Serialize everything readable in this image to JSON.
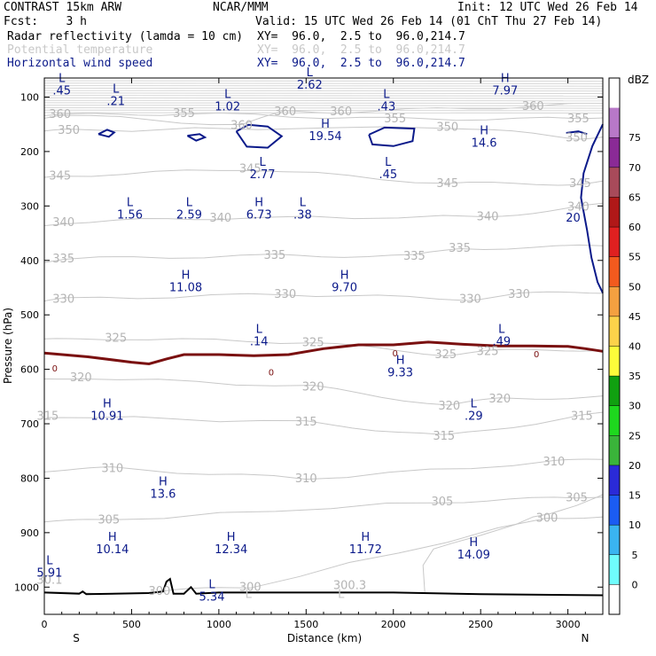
{
  "header": {
    "model": "CONTRAST 15km ARW",
    "org": "NCAR/MMM",
    "init": "Init: 12 UTC Wed 26 Feb 14",
    "fcst": "Fcst:    3 h",
    "valid": "Valid: 15 UTC Wed 26 Feb 14 (01 ChT Thu 27 Feb 14)"
  },
  "fields": [
    {
      "name": "Radar reflectivity (lamda = 10 cm)",
      "xy": "XY=  96.0,  2.5 to  96.0,214.7",
      "color": "#000000"
    },
    {
      "name": "Potential temperature",
      "xy": "XY=  96.0,  2.5 to  96.0,214.7",
      "color": "#c8c8c8"
    },
    {
      "name": "Horizontal wind speed",
      "xy": "XY=  96.0,  2.5 to  96.0,214.7",
      "color": "#0b1a8a"
    }
  ],
  "chart_data": {
    "type": "contour",
    "xlabel": "Distance (km)",
    "ylabel": "Pressure (hPa)",
    "xlim": [
      0,
      3200
    ],
    "ylim": [
      1050,
      65
    ],
    "xticks": [
      0,
      500,
      1000,
      1500,
      2000,
      2500,
      3000
    ],
    "yticks": [
      100,
      200,
      300,
      400,
      500,
      600,
      700,
      800,
      900,
      1000
    ],
    "x_end_labels": {
      "left": "S",
      "right": "N"
    },
    "colorbar": {
      "label": "dBZ",
      "levels": [
        0,
        5,
        10,
        15,
        20,
        25,
        30,
        35,
        40,
        45,
        50,
        55,
        60,
        65,
        70,
        75
      ],
      "colors": [
        "#ffffff",
        "#6ffcfc",
        "#3ab4f0",
        "#1b5cf2",
        "#2a2ad8",
        "#3ab43a",
        "#1ed81e",
        "#10a010",
        "#fcfc3a",
        "#fcd24a",
        "#f4a040",
        "#f25a1e",
        "#e02020",
        "#b01818",
        "#a84a5a",
        "#8a2a96",
        "#b878c8",
        "#ffffff"
      ]
    },
    "theta_contour_labels": [
      {
        "x": 90,
        "p": 132,
        "text": "360"
      },
      {
        "x": 800,
        "p": 130,
        "text": "355"
      },
      {
        "x": 1130,
        "p": 152,
        "text": "360"
      },
      {
        "x": 1380,
        "p": 127,
        "text": "360"
      },
      {
        "x": 1700,
        "p": 127,
        "text": "360"
      },
      {
        "x": 2010,
        "p": 140,
        "text": "355"
      },
      {
        "x": 2800,
        "p": 117,
        "text": "360"
      },
      {
        "x": 3060,
        "p": 140,
        "text": "355"
      },
      {
        "x": 140,
        "p": 161,
        "text": "350"
      },
      {
        "x": 2310,
        "p": 155,
        "text": "350"
      },
      {
        "x": 3050,
        "p": 175,
        "text": "350"
      },
      {
        "x": 1180,
        "p": 232,
        "text": "345"
      },
      {
        "x": 90,
        "p": 245,
        "text": "345"
      },
      {
        "x": 2310,
        "p": 259,
        "text": "345"
      },
      {
        "x": 3070,
        "p": 259,
        "text": "345"
      },
      {
        "x": 1010,
        "p": 322,
        "text": "340"
      },
      {
        "x": 110,
        "p": 330,
        "text": "340"
      },
      {
        "x": 2540,
        "p": 320,
        "text": "340"
      },
      {
        "x": 3060,
        "p": 302,
        "text": "340"
      },
      {
        "x": 110,
        "p": 397,
        "text": "335"
      },
      {
        "x": 1320,
        "p": 391,
        "text": "335"
      },
      {
        "x": 2120,
        "p": 392,
        "text": "335"
      },
      {
        "x": 2380,
        "p": 378,
        "text": "335"
      },
      {
        "x": 110,
        "p": 471,
        "text": "330"
      },
      {
        "x": 1380,
        "p": 462,
        "text": "330"
      },
      {
        "x": 2440,
        "p": 471,
        "text": "330"
      },
      {
        "x": 2720,
        "p": 462,
        "text": "330"
      },
      {
        "x": 410,
        "p": 543,
        "text": "325"
      },
      {
        "x": 1540,
        "p": 551,
        "text": "325"
      },
      {
        "x": 2300,
        "p": 573,
        "text": "325"
      },
      {
        "x": 2540,
        "p": 567,
        "text": "325"
      },
      {
        "x": 210,
        "p": 615,
        "text": "320"
      },
      {
        "x": 1540,
        "p": 632,
        "text": "320"
      },
      {
        "x": 2320,
        "p": 667,
        "text": "320"
      },
      {
        "x": 2610,
        "p": 654,
        "text": "320"
      },
      {
        "x": 20,
        "p": 686,
        "text": "315"
      },
      {
        "x": 1500,
        "p": 697,
        "text": "315"
      },
      {
        "x": 2290,
        "p": 723,
        "text": "315"
      },
      {
        "x": 3080,
        "p": 686,
        "text": "315"
      },
      {
        "x": 390,
        "p": 782,
        "text": "310"
      },
      {
        "x": 1500,
        "p": 801,
        "text": "310"
      },
      {
        "x": 2920,
        "p": 770,
        "text": "310"
      },
      {
        "x": 370,
        "p": 877,
        "text": "305"
      },
      {
        "x": 2280,
        "p": 843,
        "text": "305"
      },
      {
        "x": 3050,
        "p": 836,
        "text": "305"
      },
      {
        "x": 2880,
        "p": 873,
        "text": "300"
      },
      {
        "x": 1180,
        "p": 1000,
        "text": "300"
      },
      {
        "x": 1750,
        "p": 997,
        "text": "300.3"
      },
      {
        "x": 30,
        "p": 987,
        "text": "30.1"
      },
      {
        "x": 660,
        "p": 1008,
        "text": "300"
      }
    ],
    "wind_contour_labels": [
      {
        "x": 3030,
        "p": 322,
        "text": "20"
      }
    ],
    "dbz_contour_labels": [
      {
        "x": 60,
        "p": 597,
        "text": "0"
      },
      {
        "x": 1300,
        "p": 605,
        "text": "0"
      },
      {
        "x": 2010,
        "p": 570,
        "text": "0"
      },
      {
        "x": 2820,
        "p": 571,
        "text": "0"
      }
    ],
    "extrema": [
      {
        "x": 100,
        "p": 72,
        "kind": "L",
        "value": ".45"
      },
      {
        "x": 410,
        "p": 92,
        "kind": "L",
        "value": ".21"
      },
      {
        "x": 1050,
        "p": 102,
        "kind": "L",
        "value": "1.02"
      },
      {
        "x": 1520,
        "p": 62,
        "kind": "L",
        "value": "2.62"
      },
      {
        "x": 1960,
        "p": 102,
        "kind": "L",
        "value": ".43"
      },
      {
        "x": 2640,
        "p": 72,
        "kind": "H",
        "value": "7.97"
      },
      {
        "x": 1610,
        "p": 156,
        "kind": "H",
        "value": "19.54"
      },
      {
        "x": 2520,
        "p": 168,
        "kind": "H",
        "value": "14.6"
      },
      {
        "x": 1250,
        "p": 226,
        "kind": "L",
        "value": "2.77"
      },
      {
        "x": 1970,
        "p": 226,
        "kind": "L",
        "value": ".45"
      },
      {
        "x": 490,
        "p": 300,
        "kind": "L",
        "value": "1.56"
      },
      {
        "x": 830,
        "p": 300,
        "kind": "L",
        "value": "2.59"
      },
      {
        "x": 1230,
        "p": 300,
        "kind": "H",
        "value": "6.73"
      },
      {
        "x": 1480,
        "p": 300,
        "kind": "L",
        "value": ".38"
      },
      {
        "x": 810,
        "p": 434,
        "kind": "H",
        "value": "11.08"
      },
      {
        "x": 1720,
        "p": 434,
        "kind": "H",
        "value": "9.70"
      },
      {
        "x": 1230,
        "p": 533,
        "kind": "L",
        "value": ".14"
      },
      {
        "x": 2620,
        "p": 533,
        "kind": "L",
        "value": ".49"
      },
      {
        "x": 2040,
        "p": 590,
        "kind": "H",
        "value": "9.33"
      },
      {
        "x": 360,
        "p": 670,
        "kind": "H",
        "value": "10.91"
      },
      {
        "x": 2460,
        "p": 670,
        "kind": "L",
        "value": ".29"
      },
      {
        "x": 680,
        "p": 813,
        "kind": "H",
        "value": "13.6"
      },
      {
        "x": 390,
        "p": 915,
        "kind": "H",
        "value": "10.14"
      },
      {
        "x": 1070,
        "p": 915,
        "kind": "H",
        "value": "12.34"
      },
      {
        "x": 1840,
        "p": 915,
        "kind": "H",
        "value": "11.72"
      },
      {
        "x": 2460,
        "p": 925,
        "kind": "H",
        "value": "14.09"
      },
      {
        "x": 30,
        "p": 958,
        "kind": "L",
        "value": "5.91"
      },
      {
        "x": 960,
        "p": 1002,
        "kind": "L",
        "value": "5.34"
      },
      {
        "x": 1170,
        "p": 1020,
        "kind": "L",
        "value": ""
      },
      {
        "x": 1700,
        "p": 1020,
        "kind": "L",
        "value": ""
      }
    ],
    "zero_dbz_line": [
      [
        0,
        570
      ],
      [
        250,
        577
      ],
      [
        500,
        587
      ],
      [
        600,
        590
      ],
      [
        700,
        581
      ],
      [
        800,
        573
      ],
      [
        1000,
        573
      ],
      [
        1200,
        575
      ],
      [
        1400,
        573
      ],
      [
        1600,
        562
      ],
      [
        1800,
        555
      ],
      [
        2000,
        555
      ],
      [
        2200,
        550
      ],
      [
        2400,
        554
      ],
      [
        2600,
        557
      ],
      [
        2800,
        557
      ],
      [
        3000,
        558
      ],
      [
        3100,
        562
      ],
      [
        3200,
        567
      ]
    ],
    "wind_20_contours": [
      [
        [
          310,
          168
        ],
        [
          360,
          160
        ],
        [
          400,
          165
        ],
        [
          370,
          173
        ],
        [
          310,
          168
        ]
      ],
      [
        [
          820,
          171
        ],
        [
          890,
          168
        ],
        [
          920,
          174
        ],
        [
          870,
          180
        ],
        [
          820,
          171
        ]
      ],
      [
        [
          1100,
          163
        ],
        [
          1170,
          151
        ],
        [
          1280,
          154
        ],
        [
          1360,
          172
        ],
        [
          1280,
          193
        ],
        [
          1160,
          191
        ],
        [
          1100,
          163
        ]
      ],
      [
        [
          1860,
          169
        ],
        [
          1950,
          156
        ],
        [
          2120,
          158
        ],
        [
          2110,
          181
        ],
        [
          2000,
          190
        ],
        [
          1880,
          187
        ],
        [
          1860,
          169
        ]
      ],
      [
        [
          2990,
          166
        ],
        [
          3060,
          163
        ],
        [
          3110,
          168
        ]
      ],
      [
        [
          3200,
          150
        ],
        [
          3140,
          190
        ],
        [
          3090,
          240
        ],
        [
          3075,
          285
        ],
        [
          3110,
          345
        ],
        [
          3135,
          395
        ],
        [
          3170,
          440
        ],
        [
          3200,
          460
        ]
      ]
    ],
    "terrain": [
      [
        0,
        1010
      ],
      [
        200,
        1012
      ],
      [
        220,
        1008
      ],
      [
        240,
        1013
      ],
      [
        600,
        1011
      ],
      [
        680,
        1008
      ],
      [
        700,
        990
      ],
      [
        720,
        985
      ],
      [
        740,
        1012
      ],
      [
        800,
        1012
      ],
      [
        840,
        1000
      ],
      [
        870,
        1012
      ],
      [
        1000,
        1010
      ],
      [
        2000,
        1010
      ],
      [
        2500,
        1013
      ],
      [
        3200,
        1015
      ]
    ],
    "theta_300_contour": [
      [
        2180,
        1010
      ],
      [
        2170,
        960
      ],
      [
        2230,
        930
      ],
      [
        2330,
        920
      ],
      [
        2500,
        905
      ],
      [
        2700,
        885
      ],
      [
        2800,
        871
      ],
      [
        2900,
        865
      ],
      [
        3050,
        850
      ],
      [
        3150,
        837
      ],
      [
        3200,
        830
      ]
    ]
  }
}
